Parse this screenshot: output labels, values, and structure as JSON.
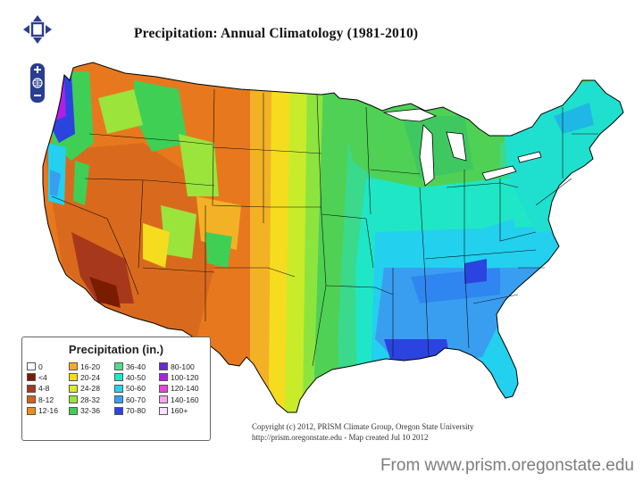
{
  "title": "Precipitation:  Annual Climatology (1981-2010)",
  "legend": {
    "title": "Precipitation (in.)",
    "items": [
      {
        "label": "0",
        "color": "#ffffff"
      },
      {
        "label": "<4",
        "color": "#7a1c00"
      },
      {
        "label": "4-8",
        "color": "#a8381b"
      },
      {
        "label": "8-12",
        "color": "#d0621c"
      },
      {
        "label": "12-16",
        "color": "#ee8c1f"
      },
      {
        "label": "16-20",
        "color": "#f3ad25"
      },
      {
        "label": "20-24",
        "color": "#f5dc1f"
      },
      {
        "label": "24-28",
        "color": "#d6ee25"
      },
      {
        "label": "28-32",
        "color": "#9ae43c"
      },
      {
        "label": "32-36",
        "color": "#3fcf55"
      },
      {
        "label": "36-40",
        "color": "#4fdc8d"
      },
      {
        "label": "40-50",
        "color": "#1fe8c8"
      },
      {
        "label": "50-60",
        "color": "#23d4ee"
      },
      {
        "label": "60-70",
        "color": "#3a9ef0"
      },
      {
        "label": "70-80",
        "color": "#2b44e0"
      },
      {
        "label": "80-100",
        "color": "#6a28d6"
      },
      {
        "label": "100-120",
        "color": "#b21ee6"
      },
      {
        "label": "120-140",
        "color": "#f23ce8"
      },
      {
        "label": "140-160",
        "color": "#f7a6ec"
      },
      {
        "label": "160+",
        "color": "#fbe0fa"
      }
    ]
  },
  "copyright": {
    "line1": "Copyright (c) 2012, PRISM Climate Group, Oregon State University",
    "line2": "http://prism.oregonstate.edu  -  Map created Jul 10 2012"
  },
  "source_note": "From www.prism.oregonstate.edu",
  "nav_icons": [
    "pan-arrows-icon",
    "zoom-in-icon",
    "globe-icon",
    "zoom-out-icon"
  ]
}
